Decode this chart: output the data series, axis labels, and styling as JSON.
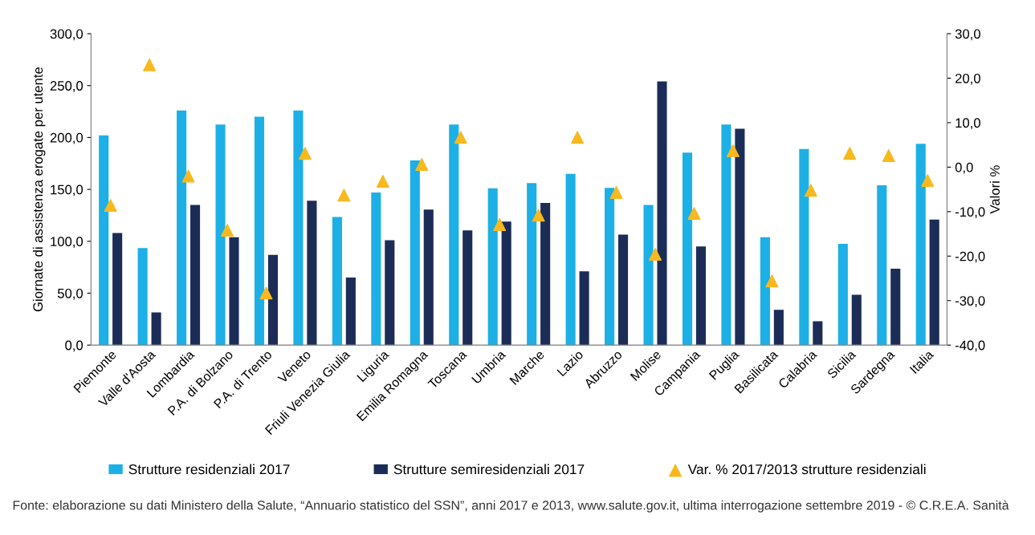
{
  "chart_data": {
    "type": "bar",
    "categories": [
      "Piemonte",
      "Valle d'Aosta",
      "Lombardia",
      "P.A. di Bolzano",
      "P.A. di Trento",
      "Veneto",
      "Friuli Venezia Giulia",
      "Liguria",
      "Emilia Romagna",
      "Toscana",
      "Umbria",
      "Marche",
      "Lazio",
      "Abruzzo",
      "Molise",
      "Campania",
      "Puglia",
      "Basilicata",
      "Calabria",
      "Sicilia",
      "Sardegna",
      "Italia"
    ],
    "ylabel": "Giornate di assistenza erogate per utente",
    "y2label": "Valori %",
    "ylim": [
      0,
      300
    ],
    "yticks": [
      {
        "value": 0,
        "label": "0,0"
      },
      {
        "value": 50,
        "label": "50,0"
      },
      {
        "value": 100,
        "label": "100,0"
      },
      {
        "value": 150,
        "label": "150,0"
      },
      {
        "value": 200,
        "label": "200,0"
      },
      {
        "value": 250,
        "label": "250,0"
      },
      {
        "value": 300,
        "label": "300,0"
      }
    ],
    "y2lim": [
      -40,
      30
    ],
    "y2ticks": [
      {
        "value": -40,
        "label": "-40,0"
      },
      {
        "value": -30,
        "label": "-30,0"
      },
      {
        "value": -20,
        "label": "-20,0"
      },
      {
        "value": -10,
        "label": "-10,0"
      },
      {
        "value": 0,
        "label": "0,0"
      },
      {
        "value": 10,
        "label": "10,0"
      },
      {
        "value": 20,
        "label": "20,0"
      },
      {
        "value": 30,
        "label": "30,0"
      }
    ],
    "grid": false,
    "legend": "bottom",
    "series": [
      {
        "name": "Strutture residenziali 2017",
        "color": "#1cb0e6",
        "values": [
          202,
          93.5,
          226,
          212.5,
          220,
          226,
          123.5,
          147,
          178,
          212.5,
          151,
          156,
          165,
          151.5,
          135,
          185.5,
          212.5,
          104,
          189,
          97.5,
          154,
          194
        ]
      },
      {
        "name": "Strutture semiresidenziali 2017",
        "color": "#1b2d57",
        "values": [
          108,
          31.5,
          135,
          104,
          87,
          139,
          65,
          101,
          130.5,
          110.5,
          119,
          137,
          71,
          106.5,
          254,
          95,
          208.5,
          34,
          23,
          48.5,
          73.5,
          121
        ]
      },
      {
        "name": "Var. % 2017/2013 strutture residenziali",
        "color": "#f9b91e",
        "type": "scatter",
        "axis": "y2",
        "marker": "triangle",
        "values": [
          -8.6,
          23,
          -2,
          -14.2,
          -28.3,
          3.1,
          -6.3,
          -3.2,
          0.6,
          6.7,
          -12.9,
          -10.8,
          6.7,
          -5.7,
          -19.6,
          -10.4,
          3.7,
          -25.6,
          -5.2,
          3.1,
          2.6,
          -3
        ]
      }
    ],
    "annotations": [
      "Fonte: elaborazione su dati Ministero della Salute, “Annuario statistico del SSN”, anni 2017 e 2013, www.salute.gov.it, ultima interrogazione settembre 2019 - © C.R.E.A. Sanità"
    ]
  }
}
